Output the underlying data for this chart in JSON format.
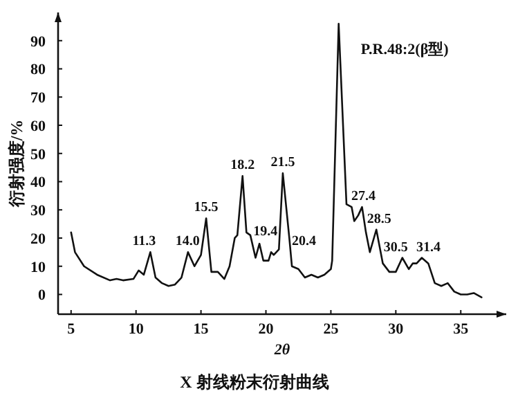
{
  "chart_data": {
    "type": "line",
    "title": "X 射线粉末衍射曲线",
    "xlabel": "2θ",
    "ylabel": "衍射强度/%",
    "xlim": [
      4,
      38.5
    ],
    "ylim": [
      -7,
      100
    ],
    "xticks": [
      5,
      10,
      15,
      20,
      25,
      30,
      35
    ],
    "yticks": [
      0,
      10,
      20,
      30,
      40,
      50,
      60,
      70,
      80,
      90
    ],
    "grid": false,
    "legend": false,
    "marker": "none",
    "line_style": "solid",
    "series": [
      {
        "name": "P.R.48:2(β型)",
        "color": "#111111",
        "x": [
          5,
          5.3,
          6,
          7,
          8,
          8.5,
          9,
          9.8,
          10.2,
          10.6,
          11.1,
          11.5,
          12,
          12.5,
          13,
          13.5,
          14,
          14.5,
          15,
          15.4,
          15.8,
          16.3,
          16.8,
          17.2,
          17.6,
          17.8,
          18.2,
          18.5,
          18.8,
          19.2,
          19.5,
          19.8,
          20.2,
          20.4,
          20.6,
          21,
          21.3,
          21.8,
          22,
          22.5,
          23,
          23.5,
          24,
          24.5,
          25,
          25.1,
          25.6,
          26.2,
          26.6,
          26.8,
          27.1,
          27.4,
          27.7,
          28,
          28.5,
          29,
          29.5,
          30,
          30.5,
          31,
          31.3,
          31.6,
          32,
          32.5,
          33,
          33.5,
          34,
          34.5,
          35,
          35.5,
          36,
          36.6
        ],
        "values": [
          22,
          15,
          10,
          7,
          5,
          5.5,
          5,
          5.5,
          8.5,
          7,
          15,
          6,
          4,
          3,
          3.5,
          6,
          15,
          10,
          14,
          27,
          8,
          8,
          5.5,
          10,
          20,
          21,
          42,
          22,
          21,
          13,
          18,
          12,
          12,
          15,
          14,
          16,
          43,
          20,
          10,
          9,
          6,
          7,
          6,
          7,
          9,
          12,
          96,
          32,
          31,
          26,
          28,
          31,
          22,
          15,
          23,
          11,
          8,
          8,
          13,
          9,
          11,
          11,
          13,
          11,
          4,
          3,
          4,
          1,
          0,
          0,
          0.5,
          -1
        ]
      }
    ],
    "annotations": [
      {
        "text": "11.3",
        "x": 11.1,
        "y": 15
      },
      {
        "text": "14.0",
        "x": 14,
        "y": 15
      },
      {
        "text": "15.5",
        "x": 15.4,
        "y": 27
      },
      {
        "text": "18.2",
        "x": 18.2,
        "y": 42
      },
      {
        "text": "19.4",
        "x": 19.5,
        "y": 18
      },
      {
        "text": "20.4",
        "x": 20.4,
        "y": 15
      },
      {
        "text": "21.5",
        "x": 21.3,
        "y": 43
      },
      {
        "text": "27.4",
        "x": 27.4,
        "y": 31
      },
      {
        "text": "28.5",
        "x": 28.5,
        "y": 23
      },
      {
        "text": "30.5",
        "x": 30.5,
        "y": 13
      },
      {
        "text": "31.4",
        "x": 32,
        "y": 13
      }
    ]
  }
}
